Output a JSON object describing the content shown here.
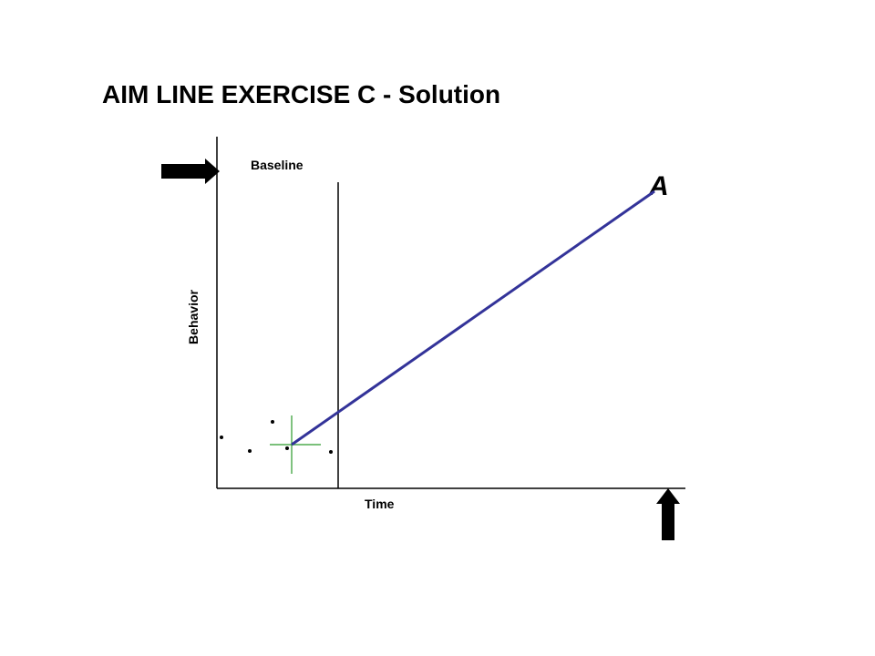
{
  "title": "AIM LINE EXERCISE C  - Solution",
  "phase_label": "Baseline",
  "y_axis_label": "Behavior",
  "x_axis_label": "Time",
  "aim_label": "A"
}
